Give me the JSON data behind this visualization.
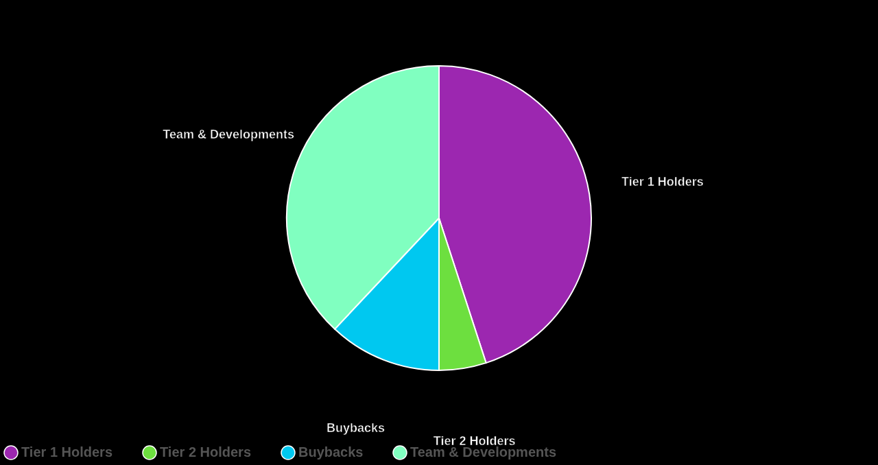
{
  "chart_data": {
    "type": "pie",
    "categories": [
      "Tier 1 Holders",
      "Tier 2 Holders",
      "Buybacks",
      "Team & Developments"
    ],
    "values": [
      45,
      5,
      12,
      38
    ],
    "colors": [
      "#9c27b0",
      "#6ddf3f",
      "#00c8f0",
      "#80ffc0"
    ],
    "legend": "bottom"
  }
}
